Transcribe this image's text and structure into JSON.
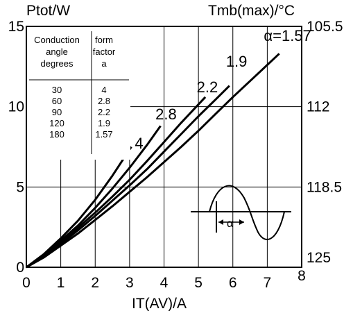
{
  "chart_data": {
    "type": "line",
    "title": "",
    "left_axis_title": "Ptot/W",
    "right_axis_title": "Tmb(max)/°C",
    "xlabel": "IT(AV)/A",
    "xlim": [
      0,
      8
    ],
    "ylim": [
      0,
      15
    ],
    "x_ticks": [
      "0",
      "1",
      "2",
      "3",
      "4",
      "5",
      "6",
      "7",
      "8"
    ],
    "y_ticks": [
      {
        "v": 0,
        "label": "0"
      },
      {
        "v": 5,
        "label": "5"
      },
      {
        "v": 10,
        "label": "10"
      },
      {
        "v": 15,
        "label": "15"
      }
    ],
    "right_ticks": [
      {
        "v": 15,
        "label": "105.5"
      },
      {
        "v": 10,
        "label": "112"
      },
      {
        "v": 5,
        "label": "118.5"
      },
      {
        "v": 0.6,
        "label": "125"
      }
    ],
    "grid_x": [
      1,
      2,
      3,
      4,
      5,
      6,
      7
    ],
    "grid_y": [
      5,
      10
    ],
    "series": [
      {
        "name": "4",
        "label_x": 3.15,
        "label_y": 7.4,
        "points": [
          [
            0,
            0
          ],
          [
            0.5,
            0.8
          ],
          [
            1,
            1.8
          ],
          [
            1.5,
            2.9
          ],
          [
            2,
            4.2
          ],
          [
            2.5,
            5.7
          ],
          [
            3.05,
            7.5
          ]
        ]
      },
      {
        "name": "2.8",
        "label_x": 3.75,
        "label_y": 9.2,
        "points": [
          [
            0,
            0
          ],
          [
            0.5,
            0.75
          ],
          [
            1,
            1.65
          ],
          [
            1.5,
            2.6
          ],
          [
            2,
            3.7
          ],
          [
            2.5,
            4.9
          ],
          [
            3,
            6.2
          ],
          [
            3.5,
            7.6
          ],
          [
            3.9,
            8.8
          ]
        ]
      },
      {
        "name": "2.2",
        "label_x": 4.95,
        "label_y": 10.9,
        "points": [
          [
            0,
            0
          ],
          [
            0.5,
            0.7
          ],
          [
            1,
            1.55
          ],
          [
            1.5,
            2.45
          ],
          [
            2,
            3.4
          ],
          [
            2.5,
            4.4
          ],
          [
            3,
            5.45
          ],
          [
            3.5,
            6.6
          ],
          [
            4,
            7.8
          ],
          [
            4.5,
            9.0
          ],
          [
            5.2,
            10.6
          ]
        ]
      },
      {
        "name": "1.9",
        "label_x": 5.8,
        "label_y": 12.5,
        "points": [
          [
            0,
            0
          ],
          [
            0.5,
            0.65
          ],
          [
            1,
            1.45
          ],
          [
            1.5,
            2.3
          ],
          [
            2,
            3.2
          ],
          [
            2.5,
            4.15
          ],
          [
            3,
            5.1
          ],
          [
            3.5,
            6.1
          ],
          [
            4,
            7.2
          ],
          [
            4.5,
            8.3
          ],
          [
            5,
            9.4
          ],
          [
            5.5,
            10.45
          ],
          [
            5.9,
            11.3
          ]
        ]
      },
      {
        "name": "α=1.57",
        "label_x": 6.9,
        "label_y": 14.1,
        "points": [
          [
            0,
            0
          ],
          [
            0.5,
            0.6
          ],
          [
            1,
            1.35
          ],
          [
            1.5,
            2.1
          ],
          [
            2,
            2.95
          ],
          [
            2.5,
            3.8
          ],
          [
            3,
            4.7
          ],
          [
            3.5,
            5.6
          ],
          [
            4,
            6.55
          ],
          [
            4.5,
            7.5
          ],
          [
            5,
            8.5
          ],
          [
            5.5,
            9.55
          ],
          [
            6,
            10.6
          ],
          [
            6.5,
            11.6
          ],
          [
            7,
            12.6
          ],
          [
            7.35,
            13.3
          ]
        ]
      }
    ],
    "legend_table": {
      "headers": [
        [
          "Conduction",
          "angle",
          "degrees"
        ],
        [
          "form",
          "factor",
          "a"
        ]
      ],
      "rows": [
        [
          "30",
          "4"
        ],
        [
          "60",
          "2.8"
        ],
        [
          "90",
          "2.2"
        ],
        [
          "120",
          "1.9"
        ],
        [
          "180",
          "1.57"
        ]
      ]
    },
    "inset_label": "α",
    "grid": true
  }
}
